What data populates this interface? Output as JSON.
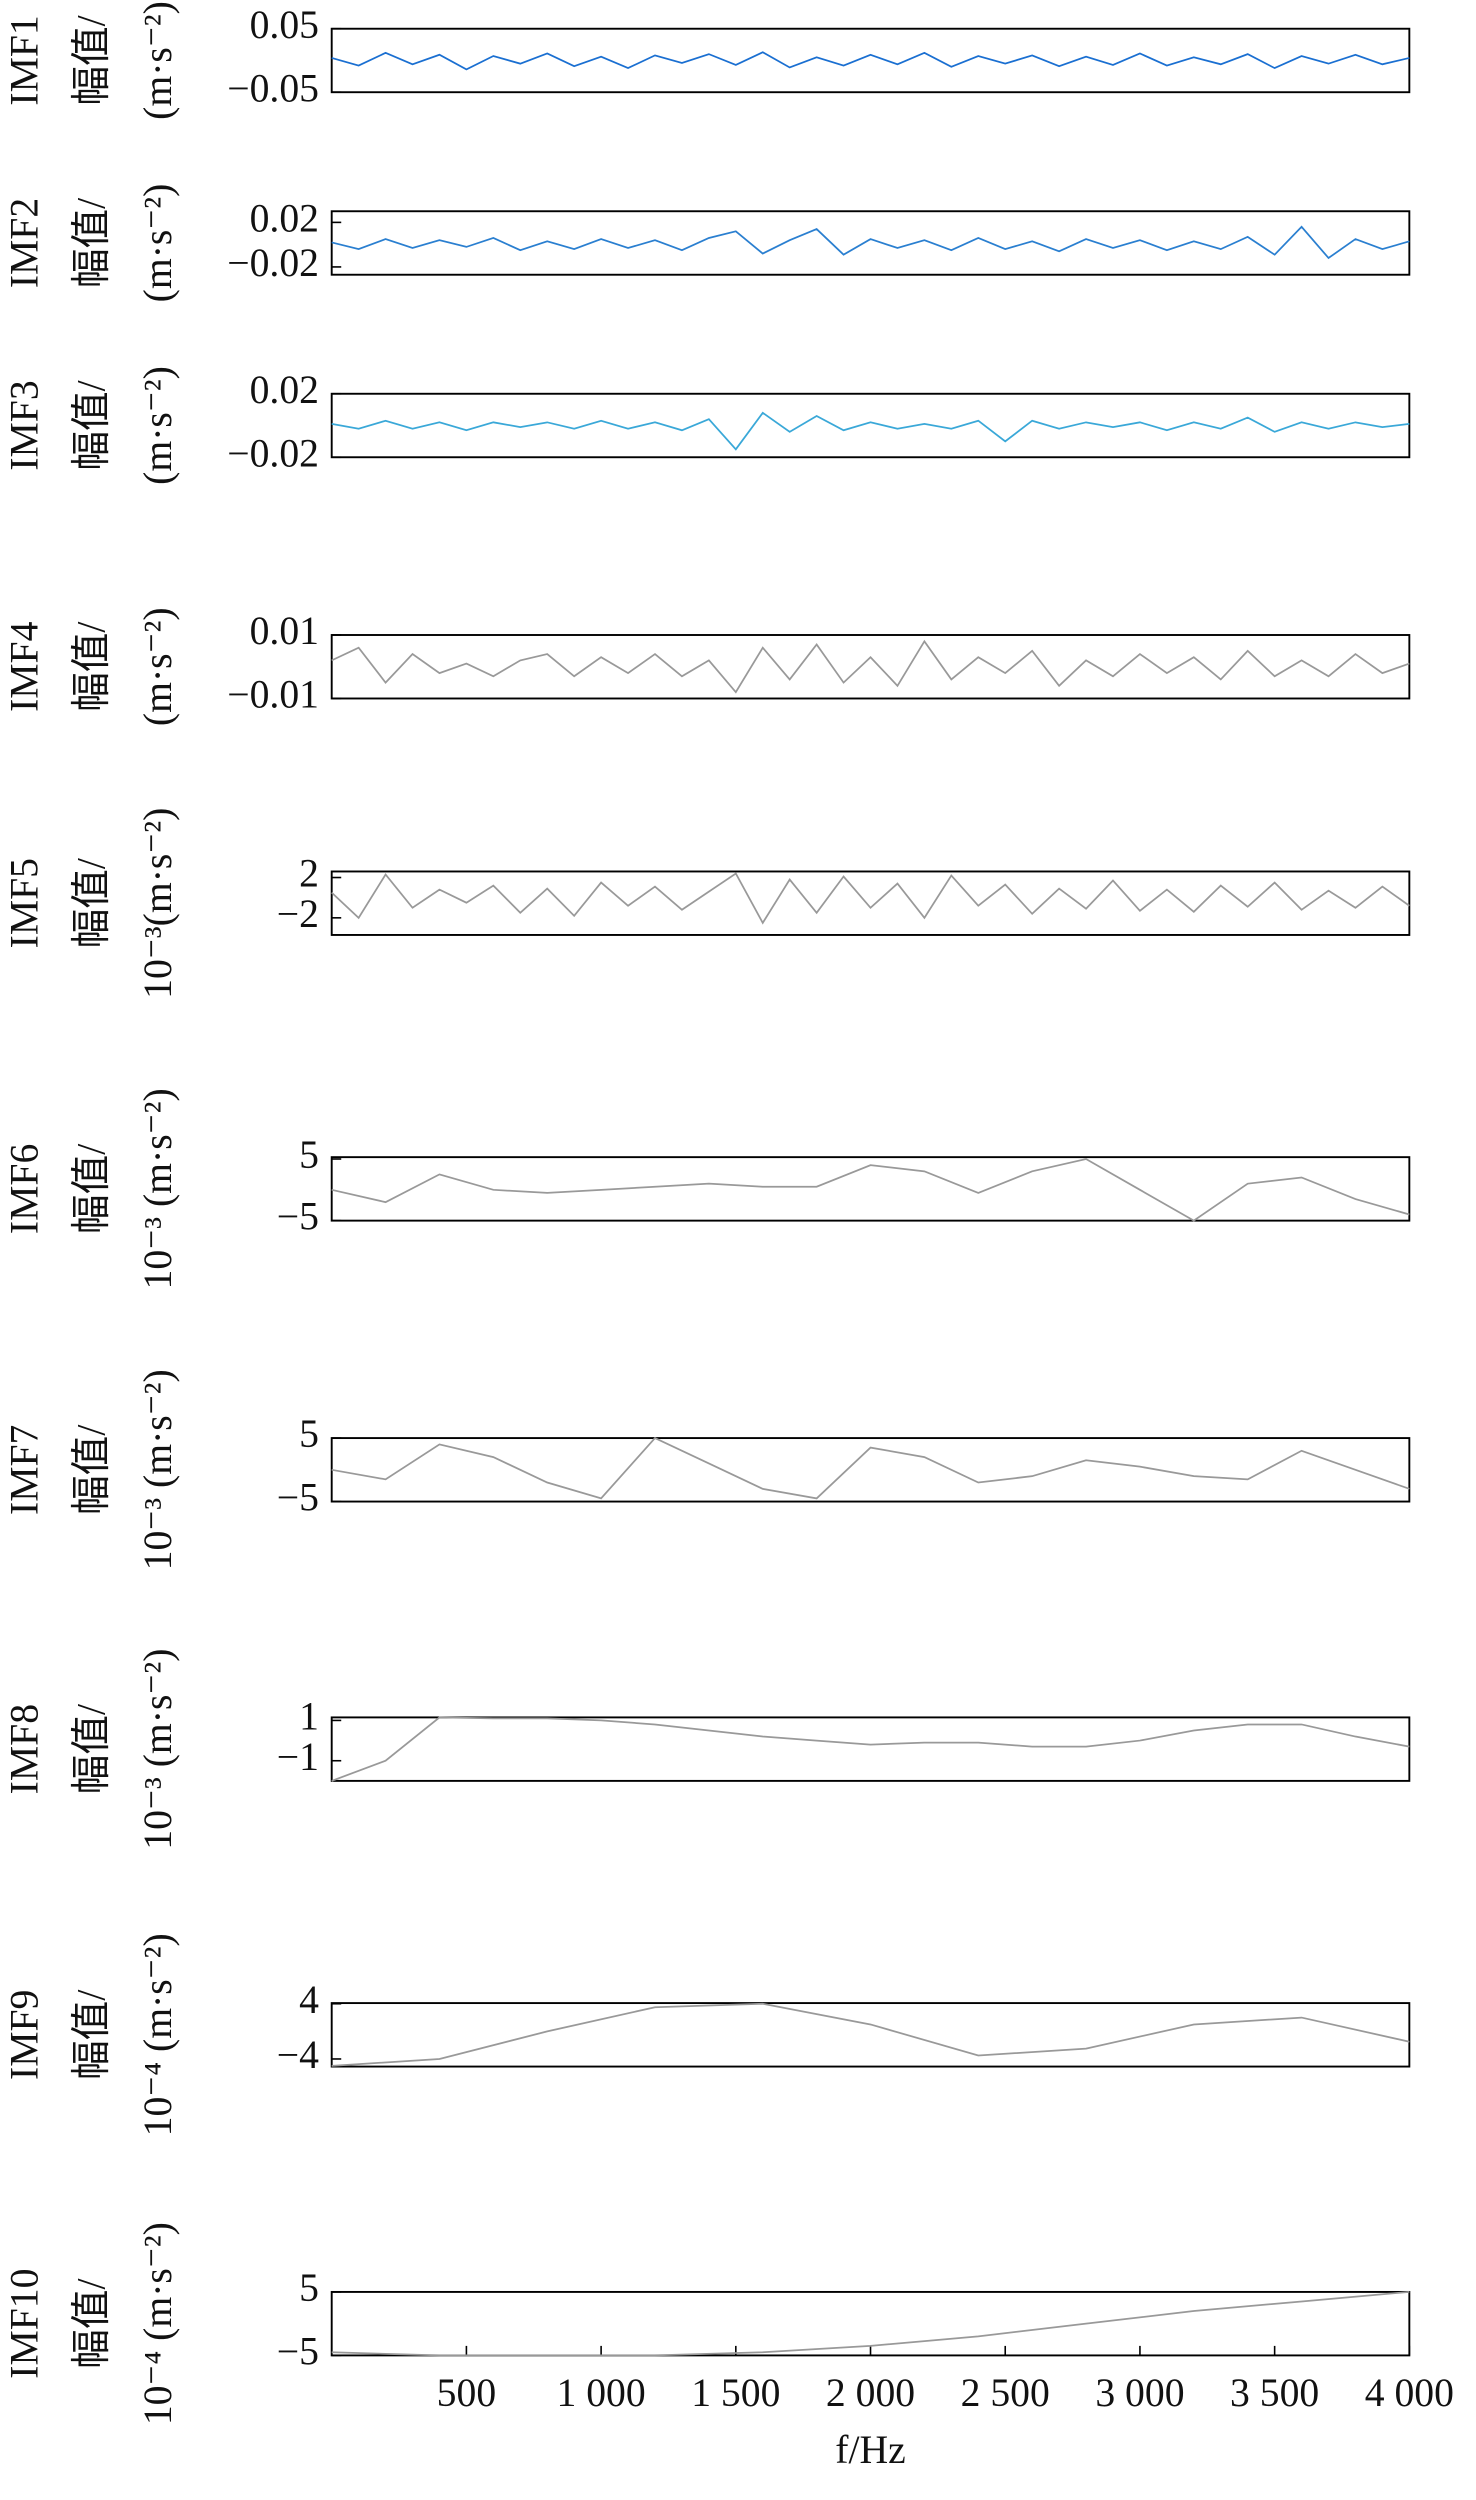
{
  "chart_data": [
    {
      "type": "line",
      "ylabel": [
        "IMF1",
        "幅值/",
        "(m·s⁻²)"
      ],
      "xlim": [
        0,
        4000
      ],
      "ylim": [
        -0.05,
        0.05
      ],
      "yticks": [
        0.05,
        {
          "value": -0.05,
          "label": "−0.05"
        }
      ],
      "color": "#1a6fd1",
      "x": [
        0,
        100,
        200,
        300,
        400,
        500,
        600,
        700,
        800,
        900,
        1000,
        1100,
        1200,
        1300,
        1400,
        1500,
        1600,
        1700,
        1800,
        1900,
        2000,
        2100,
        2200,
        2300,
        2400,
        2500,
        2600,
        2700,
        2800,
        2900,
        3000,
        3100,
        3200,
        3300,
        3400,
        3500,
        3600,
        3700,
        3800,
        3900,
        4000
      ],
      "values": [
        0.004,
        -0.008,
        0.012,
        -0.006,
        0.009,
        -0.014,
        0.007,
        -0.005,
        0.011,
        -0.009,
        0.006,
        -0.012,
        0.008,
        -0.004,
        0.01,
        -0.007,
        0.013,
        -0.011,
        0.005,
        -0.008,
        0.009,
        -0.006,
        0.012,
        -0.01,
        0.007,
        -0.005,
        0.008,
        -0.009,
        0.006,
        -0.007,
        0.011,
        -0.008,
        0.005,
        -0.006,
        0.01,
        -0.012,
        0.007,
        -0.005,
        0.009,
        -0.006,
        0.004
      ]
    },
    {
      "type": "line",
      "ylabel": [
        "IMF2",
        "幅值/",
        "(m·s⁻²)"
      ],
      "xlim": [
        0,
        4000
      ],
      "ylim": [
        -0.027,
        0.03
      ],
      "yticks": [
        0.02,
        {
          "value": -0.02,
          "label": "−0.02"
        }
      ],
      "color": "#2a7fd0",
      "x": [
        0,
        100,
        200,
        300,
        400,
        500,
        600,
        700,
        800,
        900,
        1000,
        1100,
        1200,
        1300,
        1400,
        1500,
        1600,
        1700,
        1800,
        1900,
        2000,
        2100,
        2200,
        2300,
        2400,
        2500,
        2600,
        2700,
        2800,
        2900,
        3000,
        3100,
        3200,
        3300,
        3400,
        3500,
        3600,
        3700,
        3800,
        3900,
        4000
      ],
      "values": [
        0.002,
        -0.004,
        0.005,
        -0.003,
        0.004,
        -0.002,
        0.006,
        -0.005,
        0.003,
        -0.004,
        0.005,
        -0.003,
        0.004,
        -0.005,
        0.006,
        0.012,
        -0.008,
        0.004,
        0.014,
        -0.009,
        0.005,
        -0.003,
        0.004,
        -0.005,
        0.006,
        -0.004,
        0.003,
        -0.006,
        0.005,
        -0.003,
        0.004,
        -0.005,
        0.003,
        -0.004,
        0.007,
        -0.009,
        0.016,
        -0.012,
        0.005,
        -0.004,
        0.003
      ]
    },
    {
      "type": "line",
      "ylabel": [
        "IMF3",
        "幅值/",
        "(m·s⁻²)"
      ],
      "xlim": [
        0,
        4000
      ],
      "ylim": [
        -0.02,
        0.02
      ],
      "yticks": [
        0.02,
        {
          "value": -0.02,
          "label": "−0.02"
        }
      ],
      "color": "#3aa8d8",
      "x": [
        0,
        100,
        200,
        300,
        400,
        500,
        600,
        700,
        800,
        900,
        1000,
        1100,
        1200,
        1300,
        1400,
        1500,
        1600,
        1700,
        1800,
        1900,
        2000,
        2100,
        2200,
        2300,
        2400,
        2500,
        2600,
        2700,
        2800,
        2900,
        3000,
        3100,
        3200,
        3300,
        3400,
        3500,
        3600,
        3700,
        3800,
        3900,
        4000
      ],
      "values": [
        0.001,
        -0.002,
        0.003,
        -0.002,
        0.002,
        -0.003,
        0.002,
        -0.001,
        0.002,
        -0.002,
        0.003,
        -0.002,
        0.002,
        -0.003,
        0.004,
        -0.015,
        0.008,
        -0.004,
        0.006,
        -0.003,
        0.002,
        -0.002,
        0.001,
        -0.002,
        0.003,
        -0.01,
        0.003,
        -0.002,
        0.002,
        -0.001,
        0.002,
        -0.003,
        0.002,
        -0.002,
        0.005,
        -0.004,
        0.002,
        -0.002,
        0.002,
        -0.001,
        0.001
      ]
    },
    {
      "type": "line",
      "ylabel": [
        "IMF4",
        "幅值/",
        "(m·s⁻²)"
      ],
      "xlim": [
        0,
        4000
      ],
      "ylim": [
        -0.01,
        0.01
      ],
      "yticks": [
        0.01,
        {
          "value": -0.01,
          "label": "−0.01"
        }
      ],
      "color": "#999999",
      "x": [
        0,
        100,
        200,
        300,
        400,
        500,
        600,
        700,
        800,
        900,
        1000,
        1100,
        1200,
        1300,
        1400,
        1500,
        1600,
        1700,
        1800,
        1900,
        2000,
        2100,
        2200,
        2300,
        2400,
        2500,
        2600,
        2700,
        2800,
        2900,
        3000,
        3100,
        3200,
        3300,
        3400,
        3500,
        3600,
        3700,
        3800,
        3900,
        4000
      ],
      "values": [
        0.002,
        0.006,
        -0.005,
        0.004,
        -0.002,
        0.001,
        -0.003,
        0.002,
        0.004,
        -0.003,
        0.003,
        -0.002,
        0.004,
        -0.003,
        0.002,
        -0.008,
        0.006,
        -0.004,
        0.007,
        -0.005,
        0.003,
        -0.006,
        0.008,
        -0.004,
        0.003,
        -0.002,
        0.005,
        -0.006,
        0.002,
        -0.003,
        0.004,
        -0.002,
        0.003,
        -0.004,
        0.005,
        -0.003,
        0.002,
        -0.003,
        0.004,
        -0.002,
        0.001
      ]
    },
    {
      "type": "line",
      "ylabel": [
        "IMF5",
        "幅值/",
        "10⁻³(m·s⁻²)"
      ],
      "xlim": [
        0,
        4000
      ],
      "ylim": [
        -3.7,
        2.6
      ],
      "yticks": [
        2,
        {
          "value": -2,
          "label": "−2"
        }
      ],
      "color": "#999999",
      "x": [
        0,
        100,
        200,
        300,
        400,
        500,
        600,
        700,
        800,
        900,
        1000,
        1100,
        1200,
        1300,
        1400,
        1500,
        1600,
        1700,
        1800,
        1900,
        2000,
        2100,
        2200,
        2300,
        2400,
        2500,
        2600,
        2700,
        2800,
        2900,
        3000,
        3100,
        3200,
        3300,
        3400,
        3500,
        3600,
        3700,
        3800,
        3900,
        4000
      ],
      "values": [
        0.5,
        -2,
        2.3,
        -1,
        0.8,
        -0.5,
        1.2,
        -1.5,
        0.9,
        -1.8,
        1.5,
        -0.8,
        1.1,
        -1.2,
        0.6,
        2.4,
        -2.5,
        1.8,
        -1.5,
        2.1,
        -1,
        1.4,
        -2,
        2.2,
        -0.8,
        1.3,
        -1.6,
        0.9,
        -1.1,
        1.7,
        -1.3,
        0.8,
        -1.4,
        1.2,
        -0.9,
        1.5,
        -1.2,
        0.7,
        -1,
        1.1,
        -0.8
      ]
    },
    {
      "type": "line",
      "ylabel": [
        "IMF6",
        "幅值/",
        "10⁻³ (m·s⁻²)"
      ],
      "xlim": [
        0,
        4000
      ],
      "ylim": [
        -5,
        5.3
      ],
      "yticks": [
        5,
        {
          "value": -5,
          "label": "−5"
        }
      ],
      "color": "#999999",
      "x": [
        0,
        200,
        400,
        600,
        800,
        1000,
        1200,
        1400,
        1600,
        1800,
        2000,
        2200,
        2400,
        2600,
        2800,
        3000,
        3200,
        3400,
        3600,
        3800,
        4000
      ],
      "values": [
        0,
        -2,
        2.5,
        0,
        -0.5,
        0,
        0.5,
        1,
        0.5,
        0.5,
        4,
        3,
        -0.5,
        3,
        5,
        0,
        -5,
        1,
        2,
        -1.5,
        -4
      ]
    },
    {
      "type": "line",
      "ylabel": [
        "IMF7",
        "幅值/",
        "10⁻³ (m·s⁻²)"
      ],
      "xlim": [
        0,
        4000
      ],
      "ylim": [
        -5,
        5
      ],
      "yticks": [
        5,
        {
          "value": -5,
          "label": "−5"
        }
      ],
      "color": "#999999",
      "x": [
        0,
        200,
        400,
        600,
        800,
        1000,
        1200,
        1400,
        1600,
        1800,
        2000,
        2200,
        2400,
        2600,
        2800,
        3000,
        3200,
        3400,
        3600,
        3800,
        4000
      ],
      "values": [
        0,
        -1.5,
        4,
        2,
        -2,
        -4.5,
        5,
        1,
        -3,
        -4.5,
        3.5,
        2,
        -2,
        -1,
        1.5,
        0.5,
        -1,
        -1.5,
        3,
        0,
        -3
      ]
    },
    {
      "type": "line",
      "ylabel": [
        "IMF8",
        "幅值/",
        "10⁻³ (m·s⁻²)"
      ],
      "xlim": [
        0,
        4000
      ],
      "ylim": [
        -2,
        1.15
      ],
      "yticks": [
        1,
        {
          "value": -1,
          "label": "−1"
        }
      ],
      "color": "#999999",
      "x": [
        0,
        200,
        400,
        600,
        800,
        1000,
        1200,
        1400,
        1600,
        1800,
        2000,
        2200,
        2400,
        2600,
        2800,
        3000,
        3200,
        3400,
        3600,
        3800,
        4000
      ],
      "values": [
        -2,
        -1,
        1.15,
        1.1,
        1.1,
        1,
        0.8,
        0.5,
        0.2,
        0,
        -0.2,
        -0.1,
        -0.1,
        -0.3,
        -0.3,
        0,
        0.5,
        0.8,
        0.8,
        0.2,
        -0.3
      ]
    },
    {
      "type": "line",
      "ylabel": [
        "IMF9",
        "幅值/",
        "10⁻⁴ (m·s⁻²)"
      ],
      "xlim": [
        0,
        4000
      ],
      "ylim": [
        -5.1,
        4.1
      ],
      "yticks": [
        4,
        {
          "value": -4,
          "label": "−4"
        }
      ],
      "color": "#999999",
      "x": [
        0,
        400,
        800,
        1200,
        1600,
        2000,
        2400,
        2800,
        3200,
        3600,
        4000
      ],
      "values": [
        -5,
        -4,
        0,
        3.5,
        4,
        1,
        -3.5,
        -2.5,
        1,
        2,
        -1.5
      ]
    },
    {
      "type": "line",
      "ylabel": [
        "IMF10",
        "幅值/",
        "10⁻⁴ (m·s⁻²)"
      ],
      "xlim": [
        0,
        4000
      ],
      "ylim": [
        -5,
        5
      ],
      "yticks": [
        5,
        {
          "value": -5,
          "label": "−5"
        }
      ],
      "color": "#999999",
      "x": [
        0,
        400,
        800,
        1200,
        1600,
        2000,
        2400,
        2800,
        3200,
        3600,
        4000
      ],
      "values": [
        -4.5,
        -5,
        -5,
        -5,
        -4.5,
        -3.5,
        -2,
        0,
        2,
        3.5,
        5
      ],
      "xticks": [
        500,
        {
          "value": 1000,
          "label": "1 000"
        },
        {
          "value": 1500,
          "label": "1 500"
        },
        {
          "value": 2000,
          "label": "2 000"
        },
        {
          "value": 2500,
          "label": "2 500"
        },
        {
          "value": 3000,
          "label": "3 000"
        },
        {
          "value": 3500,
          "label": "3 500"
        },
        {
          "value": 4000,
          "label": "4 000"
        }
      ],
      "xlabel": "f/Hz"
    }
  ]
}
